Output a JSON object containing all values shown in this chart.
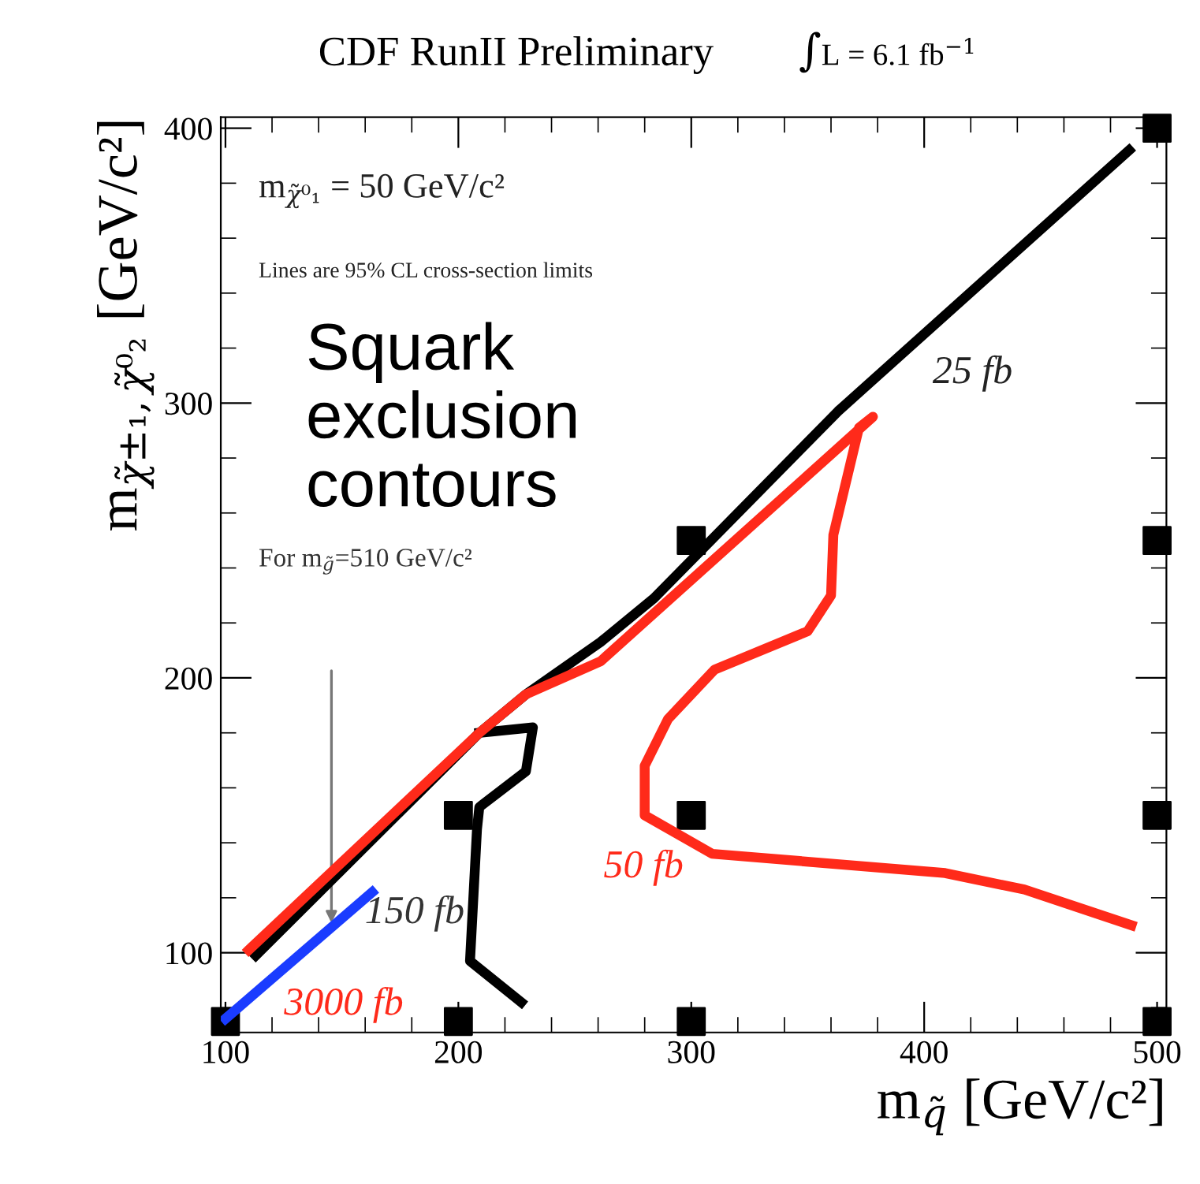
{
  "chart_data": {
    "type": "line",
    "title": "CDF RunII Preliminary",
    "subtitle": "∫L = 6.1 fb$^{−1}$",
    "xlabel": "m$_{q̃}$ [GeV/c²]",
    "ylabel": "m$_{χ̃±₁,χ̃⁰₂}$ [GeV/c²]",
    "xlim": [
      98,
      504
    ],
    "ylim": [
      71,
      404
    ],
    "xticks": [
      100,
      200,
      300,
      400,
      500
    ],
    "yticks": [
      100,
      200,
      300,
      400
    ],
    "grid": false,
    "legend": false,
    "marker": "none",
    "line_style": "solid",
    "series": [
      {
        "color": "#000000",
        "x": [
          488,
          363,
          284,
          261,
          229,
          209,
          113
        ],
        "values": [
          392,
          297,
          229,
          213,
          194,
          180,
          99
        ]
      },
      {
        "color": "#000000",
        "x": [
          209,
          232,
          229,
          209,
          208,
          205,
          227
        ],
        "values": [
          180,
          182,
          166,
          153,
          145,
          97,
          82
        ]
      },
      {
        "color": "#ff2a1a",
        "x": [
          110,
          209,
          229,
          261,
          378,
          372,
          361,
          360,
          350,
          310,
          290,
          280,
          280,
          309,
          409,
          443,
          489
        ],
        "values": [
          101,
          180,
          194,
          206,
          295,
          291,
          252,
          230,
          217,
          203,
          185,
          168,
          150,
          136,
          129,
          123,
          110
        ]
      },
      {
        "color": "#1a3cff",
        "x": [
          100,
          163
        ],
        "values": [
          76,
          122
        ]
      },
      {
        "type": "scatter",
        "marker": "square",
        "color": "#000000",
        "x": [
          100,
          200,
          300,
          500,
          200,
          300,
          500,
          300,
          500,
          500
        ],
        "values": [
          75,
          75,
          75,
          75,
          150,
          150,
          150,
          250,
          250,
          400
        ]
      }
    ],
    "annotations": [
      "m$_{χ̃⁰₁}$ = 50 GeV/c²",
      "Lines are 95% CL cross-section limits",
      "Squark exclusion contours",
      "For m$_{g̃}$=510 GeV/c²",
      "25 fb",
      "50 fb",
      "150 fb",
      "3000 fb"
    ]
  }
}
